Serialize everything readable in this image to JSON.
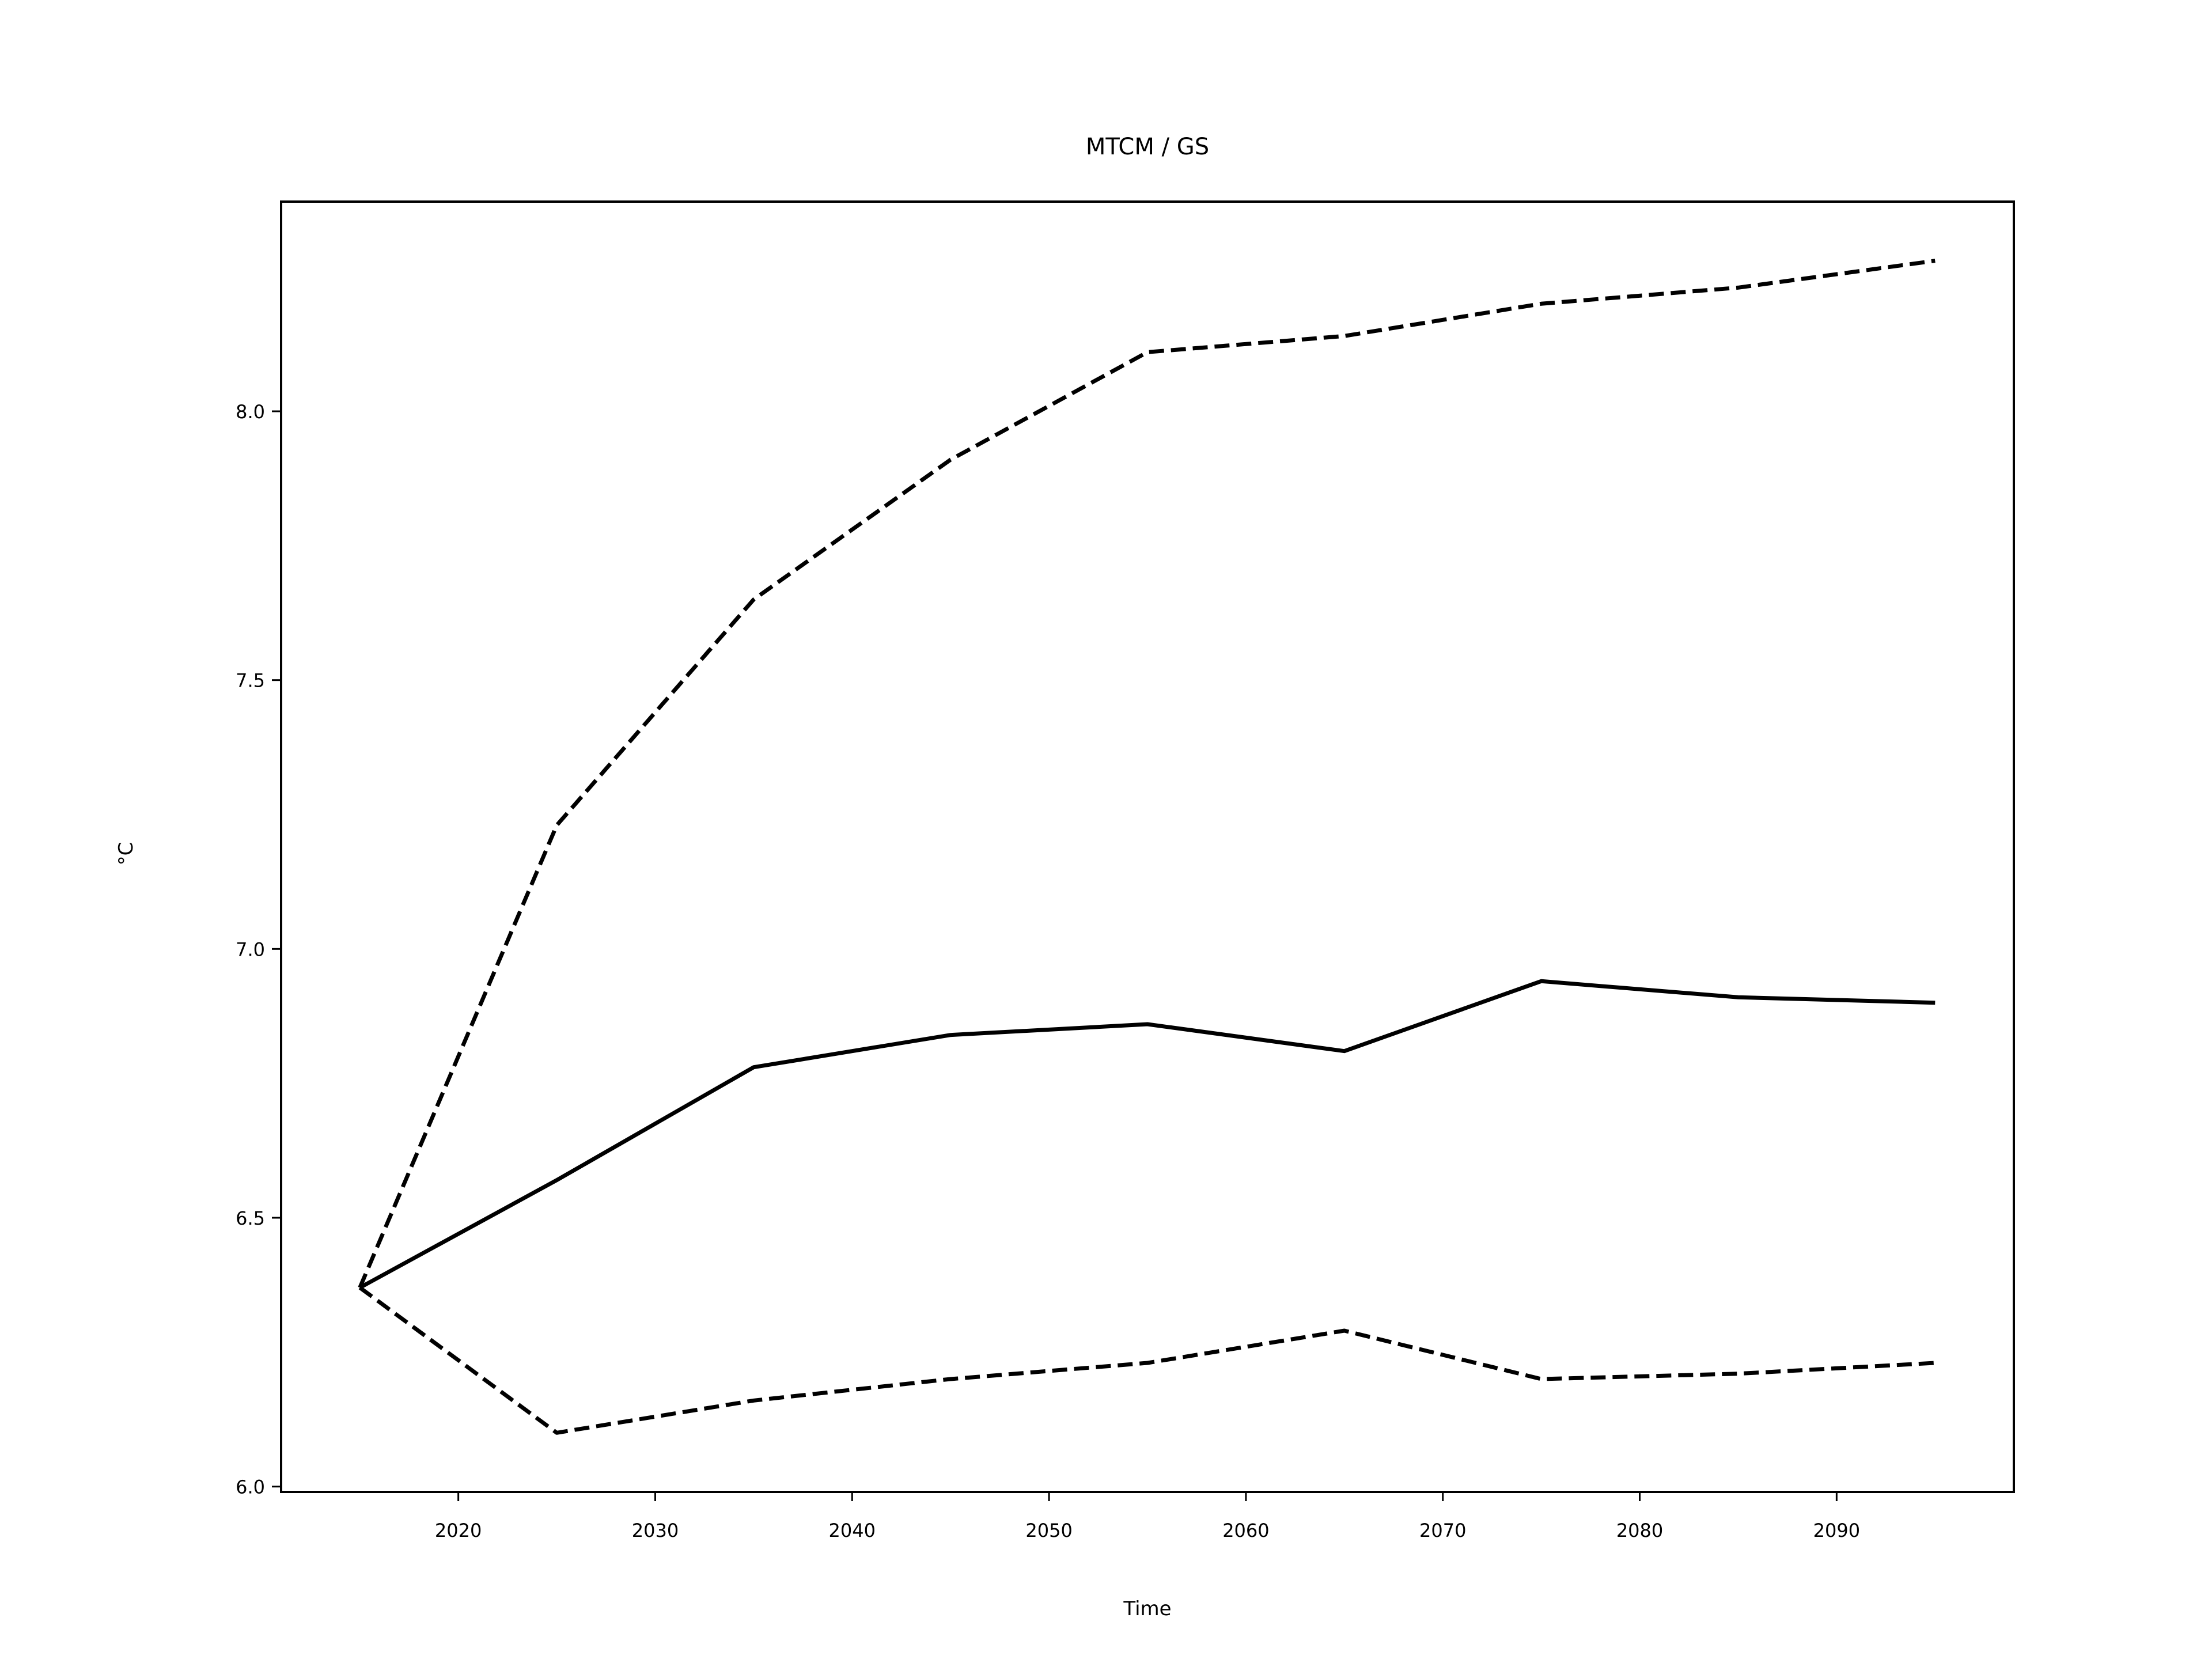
{
  "chart_data": {
    "type": "line",
    "title": "MTCM / GS",
    "xlabel": "Time",
    "ylabel": "°C",
    "xlim": [
      2011,
      2099
    ],
    "ylim": [
      5.99,
      8.39
    ],
    "x_ticks": [
      2020,
      2030,
      2040,
      2050,
      2060,
      2070,
      2080,
      2090
    ],
    "y_ticks": [
      "6.0",
      "6.5",
      "7.0",
      "7.5",
      "8.0"
    ],
    "grid": false,
    "line_color": "#000000",
    "x": [
      2015,
      2025,
      2035,
      2045,
      2055,
      2065,
      2075,
      2085,
      2095
    ],
    "series": [
      {
        "style": "solid",
        "values": [
          6.37,
          6.57,
          6.78,
          6.84,
          6.86,
          6.81,
          6.94,
          6.91,
          6.9
        ]
      },
      {
        "style": "dashed",
        "values": [
          6.37,
          7.23,
          7.65,
          7.91,
          8.11,
          8.14,
          8.2,
          8.23,
          8.28
        ]
      },
      {
        "style": "dashed",
        "values": [
          6.37,
          6.1,
          6.16,
          6.2,
          6.23,
          6.29,
          6.2,
          6.21,
          6.23
        ]
      }
    ]
  }
}
